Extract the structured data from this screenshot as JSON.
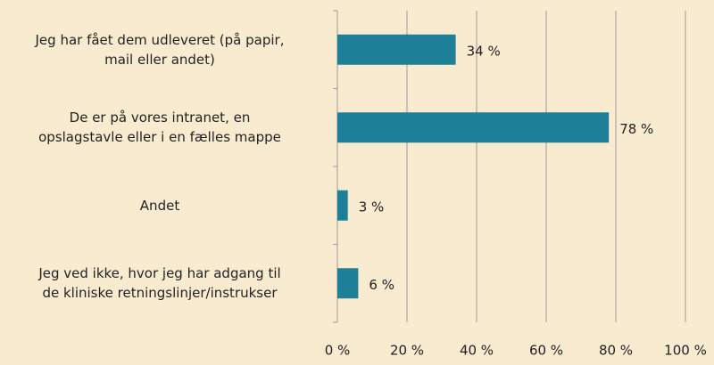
{
  "chart_data": {
    "type": "bar",
    "orientation": "horizontal",
    "categories": [
      "Jeg har fået dem udleveret (på papir,\nmail eller andet)",
      "De er på vores intranet, en\nopslagstavle eller i en fælles mappe",
      "Andet",
      "Jeg ved ikke, hvor jeg har adgang til\nde kliniske retningslinjer/instrukser"
    ],
    "values": [
      34,
      78,
      3,
      6
    ],
    "value_labels": [
      "34 %",
      "78 %",
      "3 %",
      "6 %"
    ],
    "color": "#1e7f99",
    "xlim": [
      0,
      100
    ],
    "xticks": [
      {
        "value": 0,
        "label": "0 %"
      },
      {
        "value": 20,
        "label": "20 %"
      },
      {
        "value": 40,
        "label": "40 %"
      },
      {
        "value": 60,
        "label": "60 %"
      },
      {
        "value": 80,
        "label": "80 %"
      },
      {
        "value": 100,
        "label": "100 %"
      }
    ],
    "grid": true
  }
}
